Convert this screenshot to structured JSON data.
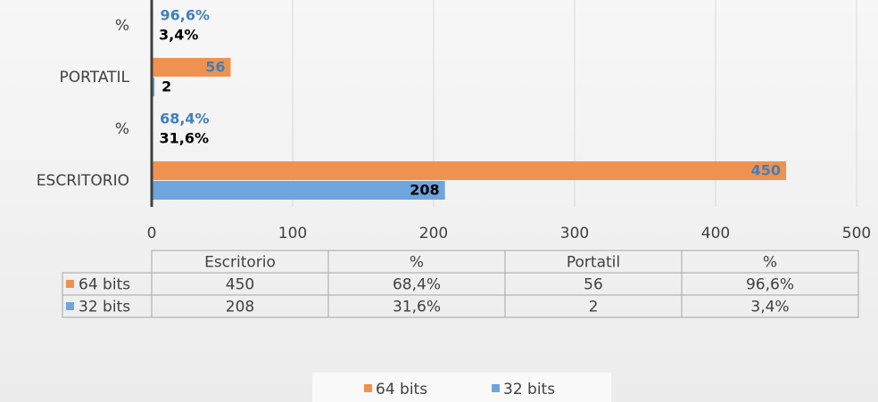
{
  "chart_data": {
    "type": "bar",
    "orientation": "horizontal",
    "categories": [
      "ESCRITORIO",
      "%",
      "PORTATIL",
      "%"
    ],
    "series": [
      {
        "name": "64 bits",
        "color": "#f0924f",
        "label_color": "#3f7fc0",
        "values": [
          450,
          0.684,
          56,
          0.966
        ],
        "value_labels": [
          "450",
          "68,4%",
          "56",
          "96,6%"
        ]
      },
      {
        "name": "32 bits",
        "color": "#6ea5dd",
        "label_color": "#000000",
        "values": [
          208,
          0.316,
          2,
          0.034
        ],
        "value_labels": [
          "208",
          "31,6%",
          "2",
          "3,4%"
        ]
      }
    ],
    "xlim": [
      0,
      500
    ],
    "xticks": [
      0,
      100,
      200,
      300,
      400,
      500
    ],
    "grid": true,
    "table_columns": [
      "Escritorio",
      "%",
      "Portatil",
      "%"
    ],
    "legend": "bottom"
  }
}
